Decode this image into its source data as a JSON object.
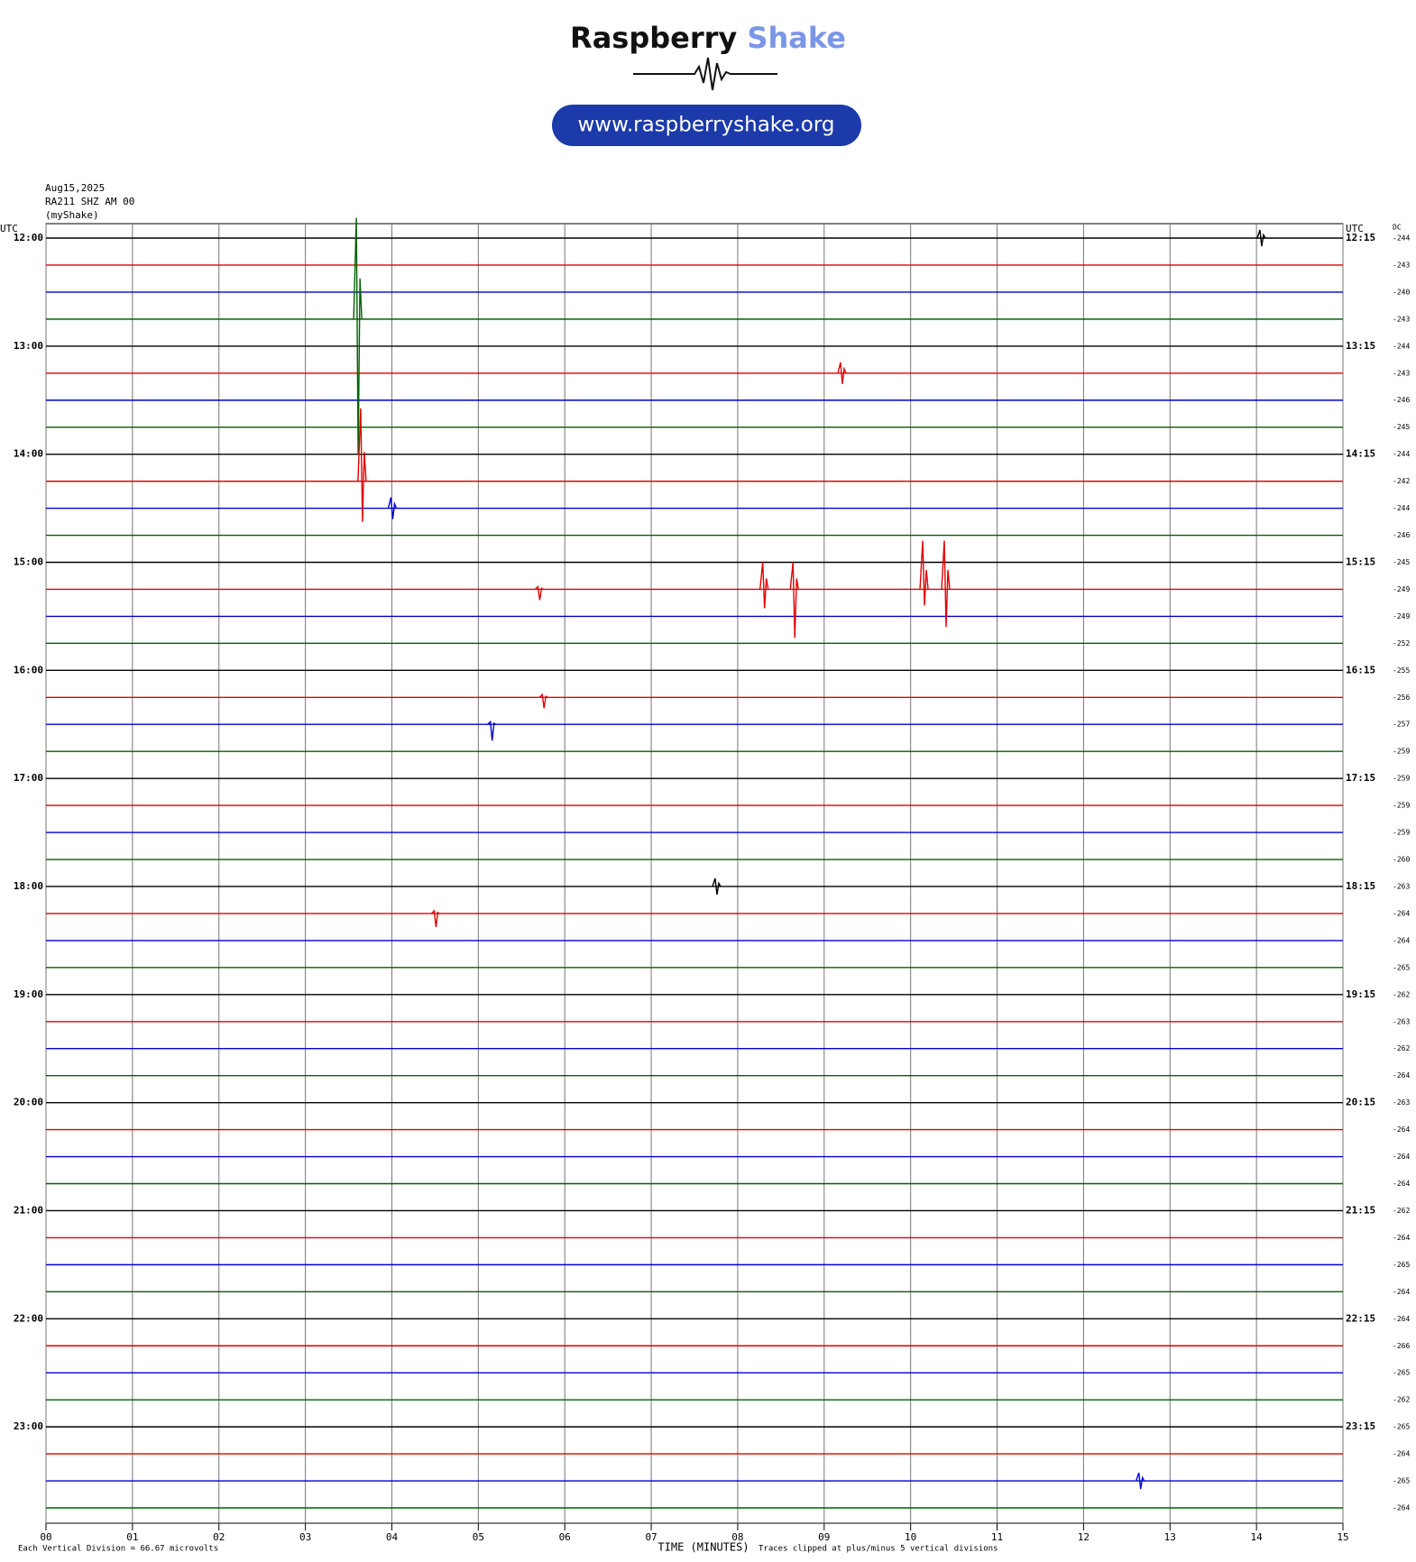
{
  "header": {
    "logo_word1": "Raspberry",
    "logo_word2": "Shake",
    "url": "www.raspberryshake.org"
  },
  "chart_data": {
    "type": "helicorder",
    "date": "Aug15,2025",
    "station": "RA211 SHZ AM 00",
    "source": "(myShake)",
    "left_axis_title": "UTC",
    "right_axis_title": "UTC",
    "offset_title": "DC",
    "x_label": "TIME (MINUTES)",
    "note_left": "Each Vertical Division =   66.67 microvolts",
    "note_right": "Traces clipped at plus/minus 5 vertical divisions",
    "colors": [
      "#000000",
      "#e00000",
      "#0000d0",
      "#006000"
    ],
    "xlim": [
      0,
      15
    ],
    "xticks": [
      {
        "value": 0,
        "label": "00"
      },
      {
        "value": 1,
        "label": "01"
      },
      {
        "value": 2,
        "label": "02"
      },
      {
        "value": 3,
        "label": "03"
      },
      {
        "value": 4,
        "label": "04"
      },
      {
        "value": 5,
        "label": "05"
      },
      {
        "value": 6,
        "label": "06"
      },
      {
        "value": 7,
        "label": "07"
      },
      {
        "value": 8,
        "label": "08"
      },
      {
        "value": 9,
        "label": "09"
      },
      {
        "value": 10,
        "label": "10"
      },
      {
        "value": 11,
        "label": "11"
      },
      {
        "value": 12,
        "label": "12"
      },
      {
        "value": 13,
        "label": "13"
      },
      {
        "value": 14,
        "label": "14"
      },
      {
        "value": 15,
        "label": "15"
      }
    ],
    "row_labels_left": [
      "12:00",
      "13:00",
      "14:00",
      "15:00",
      "16:00",
      "17:00",
      "18:00",
      "19:00",
      "20:00",
      "21:00",
      "22:00",
      "23:00"
    ],
    "row_labels_right": [
      "12:15",
      "13:15",
      "14:15",
      "15:15",
      "16:15",
      "17:15",
      "18:15",
      "19:15",
      "20:15",
      "21:15",
      "22:15",
      "23:15"
    ],
    "dc_offsets": [
      -244,
      -243,
      -240,
      -243,
      -244,
      -243,
      -246,
      -245,
      -244,
      -242,
      -244,
      -246,
      -245,
      -249,
      -249,
      -252,
      -255,
      -256,
      -257,
      -259,
      -259,
      -259,
      -259,
      -260,
      -263,
      -264,
      -264,
      -265,
      -262,
      -263,
      -262,
      -264,
      -263,
      -264,
      -264,
      -264,
      -262,
      -264,
      -265,
      -264,
      -264,
      -266,
      -265,
      -262,
      -265,
      -264,
      -265,
      -264
    ],
    "events": [
      {
        "row": 0,
        "minute": 14.05,
        "up": 0.3,
        "down": 0.3
      },
      {
        "row": 3,
        "minute": 3.6,
        "up": 3.75,
        "down": 5
      },
      {
        "row": 5,
        "minute": 9.2,
        "up": 0.4,
        "down": 0.4
      },
      {
        "row": 9,
        "minute": 3.65,
        "up": 2.7,
        "down": 1.5
      },
      {
        "row": 10,
        "minute": 4.0,
        "up": 0.4,
        "down": 0.4
      },
      {
        "row": 13,
        "minute": 5.7,
        "up": 0.1,
        "down": 0.4
      },
      {
        "row": 13,
        "minute": 8.3,
        "up": 1.0,
        "down": 0.7
      },
      {
        "row": 13,
        "minute": 8.65,
        "up": 1.0,
        "down": 1.8
      },
      {
        "row": 13,
        "minute": 10.15,
        "up": 1.8,
        "down": 0.6
      },
      {
        "row": 13,
        "minute": 10.4,
        "up": 1.8,
        "down": 1.4
      },
      {
        "row": 17,
        "minute": 5.75,
        "up": 0.1,
        "down": 0.4
      },
      {
        "row": 18,
        "minute": 5.15,
        "up": 0.1,
        "down": 0.6
      },
      {
        "row": 24,
        "minute": 7.75,
        "up": 0.3,
        "down": 0.3
      },
      {
        "row": 25,
        "minute": 4.5,
        "up": 0.1,
        "down": 0.5
      },
      {
        "row": 46,
        "minute": 12.65,
        "up": 0.3,
        "down": 0.3
      }
    ]
  }
}
